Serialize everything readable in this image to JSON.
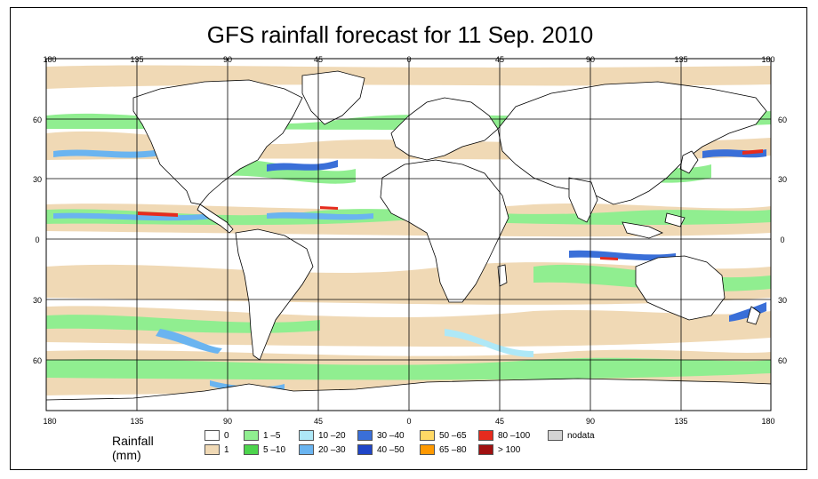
{
  "title": "GFS rainfall forecast for 11 Sep. 2010",
  "axes": {
    "top_lon": [
      "180",
      "135",
      "90",
      "45",
      "0",
      "45",
      "90",
      "135",
      "180"
    ],
    "bottom_lon": [
      "180",
      "135",
      "90",
      "45",
      "0",
      "45",
      "90",
      "135",
      "180"
    ],
    "left_lat": [
      "60",
      "30",
      "0",
      "30",
      "60"
    ],
    "right_lat": [
      "60",
      "30",
      "0",
      "30",
      "60"
    ]
  },
  "legend": {
    "title": "Rainfall (mm)",
    "items": [
      {
        "label": "0",
        "color": "#ffffff"
      },
      {
        "label": "1",
        "color": "#f0d9b5"
      },
      {
        "label": "1 –5",
        "color": "#90ee90"
      },
      {
        "label": "5 –10",
        "color": "#4dd44d"
      },
      {
        "label": "10 –20",
        "color": "#aee8f7"
      },
      {
        "label": "20 –30",
        "color": "#6ab4f0"
      },
      {
        "label": "30 –40",
        "color": "#3a6fd8"
      },
      {
        "label": "40 –50",
        "color": "#1f45c8"
      },
      {
        "label": "50 –65",
        "color": "#ffd966"
      },
      {
        "label": "65 –80",
        "color": "#ff9900"
      },
      {
        "label": "80 –100",
        "color": "#e62b1e"
      },
      {
        "label": "> 100",
        "color": "#a01010"
      },
      {
        "label": "nodata",
        "color": "#d3d3d3"
      }
    ]
  }
}
